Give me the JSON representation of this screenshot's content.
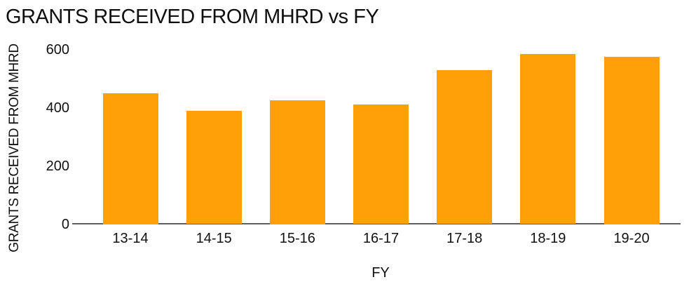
{
  "chart_data": {
    "type": "bar",
    "title": "GRANTS RECEIVED FROM MHRD vs FY",
    "xlabel": "FY",
    "ylabel": "GRANTS RECEIVED FROM MHRD",
    "categories": [
      "13-14",
      "14-15",
      "15-16",
      "16-17",
      "17-18",
      "18-19",
      "19-20"
    ],
    "values": [
      450,
      390,
      425,
      410,
      530,
      585,
      575
    ],
    "ylim": [
      0,
      600
    ],
    "yticks": [
      0,
      200,
      400,
      600
    ],
    "grid": false,
    "legend_position": "none",
    "bar_color": "#FFA008",
    "axis_line_color": "#5f5f5f",
    "text_color": "#111111",
    "background_color": "#ffffff"
  }
}
